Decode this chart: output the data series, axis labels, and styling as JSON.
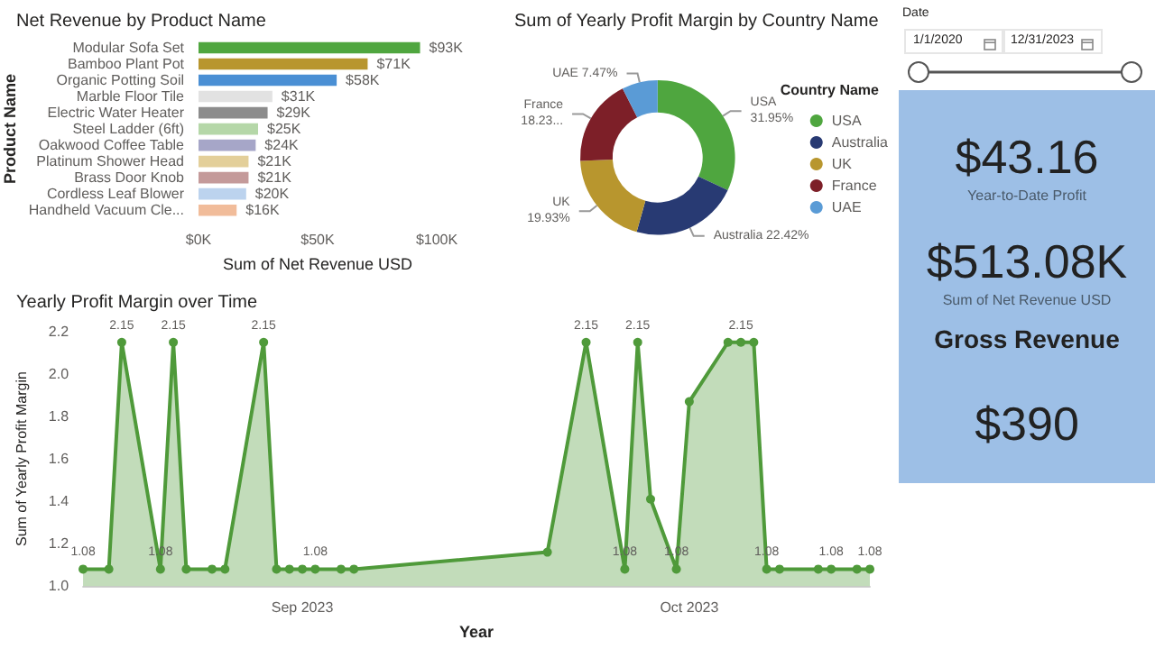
{
  "chart_data": [
    {
      "type": "bar",
      "orientation": "horizontal",
      "title": "Net Revenue by Product Name",
      "xlabel": "Sum of Net Revenue USD",
      "ylabel": "Product Name",
      "categories": [
        "Modular Sofa Set",
        "Bamboo Plant Pot",
        "Organic Potting Soil",
        "Marble Floor Tile",
        "Electric Water Heater",
        "Steel Ladder (6ft)",
        "Oakwood Coffee Table",
        "Platinum Shower Head",
        "Brass Door Knob",
        "Cordless Leaf Blower",
        "Handheld Vacuum Cle..."
      ],
      "values": [
        93000,
        71000,
        58000,
        31000,
        29000,
        25000,
        24000,
        21000,
        21000,
        20000,
        16000
      ],
      "colors": [
        "#4fa63f",
        "#b8962e",
        "#4a8fd4",
        "#e2e2e2",
        "#8c8c8c",
        "#b5d7a8",
        "#a6a6c8",
        "#e3cf9a",
        "#c49a9a",
        "#bcd3ee",
        "#f1bc9a"
      ],
      "value_labels": [
        "$93K",
        "$71K",
        "$58K",
        "$31K",
        "$29K",
        "$25K",
        "$24K",
        "$21K",
        "$21K",
        "$20K",
        "$16K"
      ],
      "xlim": [
        0,
        100000
      ],
      "xticks": [
        {
          "value": 0,
          "label": "$0K"
        },
        {
          "value": 50000,
          "label": "$50K"
        },
        {
          "value": 100000,
          "label": "$100K"
        }
      ],
      "grid": false
    },
    {
      "type": "donut",
      "title": "Sum of Yearly Profit Margin by Country Name",
      "legend_title": "Country Name",
      "legend": "right",
      "categories": [
        "USA",
        "Australia",
        "UK",
        "France",
        "UAE"
      ],
      "values": [
        31.95,
        22.42,
        19.93,
        18.23,
        7.47
      ],
      "colors": [
        "#4fa63f",
        "#283a73",
        "#b8962e",
        "#7d1f28",
        "#5a9bd6"
      ],
      "value_labels": [
        "31.95%",
        "22.42%",
        "19.93%",
        "18.23...",
        "7.47%"
      ]
    },
    {
      "type": "area",
      "title": "Yearly Profit Margin over Time",
      "xlabel": "Year",
      "ylabel": "Sum of Yearly Profit Margin",
      "marker": "circle",
      "grid": false,
      "x": [
        "2023-08-15",
        "2023-08-17",
        "2023-08-18",
        "2023-08-21",
        "2023-08-22",
        "2023-08-23",
        "2023-08-25",
        "2023-08-26",
        "2023-08-29",
        "2023-08-30",
        "2023-08-31",
        "2023-09-01",
        "2023-09-02",
        "2023-09-04",
        "2023-09-05",
        "2023-09-20",
        "2023-09-23",
        "2023-09-26",
        "2023-09-27",
        "2023-09-28",
        "2023-09-30",
        "2023-10-01",
        "2023-10-04",
        "2023-10-05",
        "2023-10-06",
        "2023-10-07",
        "2023-10-08",
        "2023-10-11",
        "2023-10-12",
        "2023-10-14",
        "2023-10-15"
      ],
      "series": [
        {
          "color": "#4f9a3a",
          "values": [
            1.08,
            1.08,
            2.15,
            1.08,
            2.15,
            1.08,
            1.08,
            1.08,
            2.15,
            1.08,
            1.08,
            1.08,
            1.08,
            1.08,
            1.08,
            1.16,
            2.15,
            1.08,
            2.15,
            1.41,
            1.08,
            1.87,
            2.15,
            2.15,
            2.15,
            1.08,
            1.08,
            1.08,
            1.08,
            1.08,
            1.08
          ],
          "value_labels": [
            "1.08",
            null,
            "2.15",
            "1.08",
            "2.15",
            null,
            null,
            null,
            "2.15",
            null,
            null,
            null,
            "1.08",
            null,
            null,
            null,
            "2.15",
            "1.08",
            "2.15",
            null,
            "1.08",
            null,
            null,
            "2.15",
            null,
            "1.08",
            null,
            null,
            "1.08",
            null,
            "1.08"
          ]
        }
      ],
      "xlim": [
        "2023-08-15",
        "2023-10-15"
      ],
      "xticks": [
        {
          "value": "2023-09-01",
          "label": "Sep 2023"
        },
        {
          "value": "2023-10-01",
          "label": "Oct 2023"
        }
      ],
      "ylim": [
        1.0,
        2.2
      ],
      "yticks": [
        {
          "value": 1.0,
          "label": "1.0"
        },
        1.2,
        1.4,
        1.6,
        1.8,
        {
          "value": 2.0,
          "label": "2.0"
        },
        2.2
      ]
    },
    {
      "type": "other",
      "title": "Date",
      "annotations": [
        "1/1/2020",
        "12/31/2023"
      ]
    },
    {
      "type": "other",
      "annotations": [
        "$43.16",
        "Year-to-Date Profit",
        "$513.08K",
        "Sum of Net Revenue USD",
        "Gross Revenue",
        "$390"
      ]
    }
  ]
}
